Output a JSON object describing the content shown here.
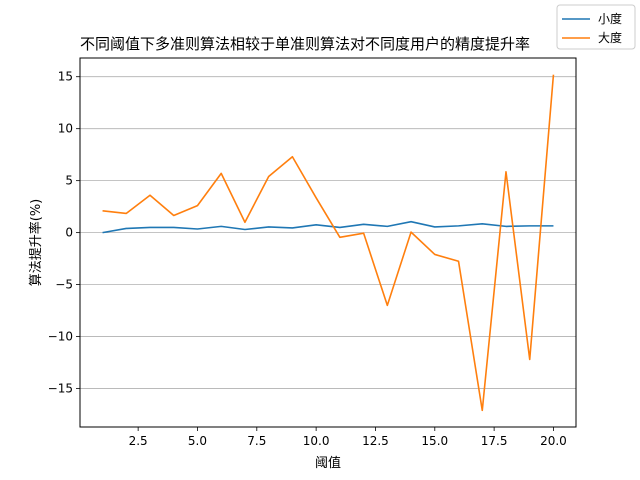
{
  "chart_data": {
    "type": "line",
    "title": "不同阈值下多准则算法相较于单准则算法对不同度用户的精度提升率",
    "xlabel": "阈值",
    "ylabel": "算法提升率(%)",
    "x": [
      1,
      2,
      3,
      4,
      5,
      6,
      7,
      8,
      9,
      10,
      11,
      12,
      13,
      14,
      15,
      16,
      17,
      18,
      19,
      20
    ],
    "xlim": [
      0.05,
      20.95
    ],
    "ylim": [
      -18.7,
      16.8
    ],
    "xticks": [
      2.5,
      5.0,
      7.5,
      10.0,
      12.5,
      15.0,
      17.5,
      20.0
    ],
    "xtick_labels": [
      "2.5",
      "5.0",
      "7.5",
      "10.0",
      "12.5",
      "15.0",
      "17.5",
      "20.0"
    ],
    "yticks": [
      -15,
      -10,
      -5,
      0,
      5,
      10,
      15
    ],
    "ytick_labels": [
      "−15",
      "−10",
      "−5",
      "0",
      "5",
      "10",
      "15"
    ],
    "grid": "y-major",
    "legend_position": "top-right",
    "series": [
      {
        "name": "小度",
        "color": "#1f77b4",
        "values": [
          0.0,
          0.4,
          0.5,
          0.5,
          0.35,
          0.6,
          0.3,
          0.55,
          0.45,
          0.75,
          0.5,
          0.8,
          0.6,
          1.05,
          0.55,
          0.65,
          0.85,
          0.6,
          0.65,
          0.65
        ]
      },
      {
        "name": "大度",
        "color": "#ff7f0e",
        "values": [
          2.1,
          1.85,
          3.6,
          1.65,
          2.6,
          5.7,
          1.0,
          5.4,
          7.3,
          3.35,
          -0.45,
          -0.05,
          -7.0,
          0.05,
          -2.1,
          -2.75,
          -17.1,
          5.85,
          -12.2,
          15.2
        ]
      }
    ]
  }
}
